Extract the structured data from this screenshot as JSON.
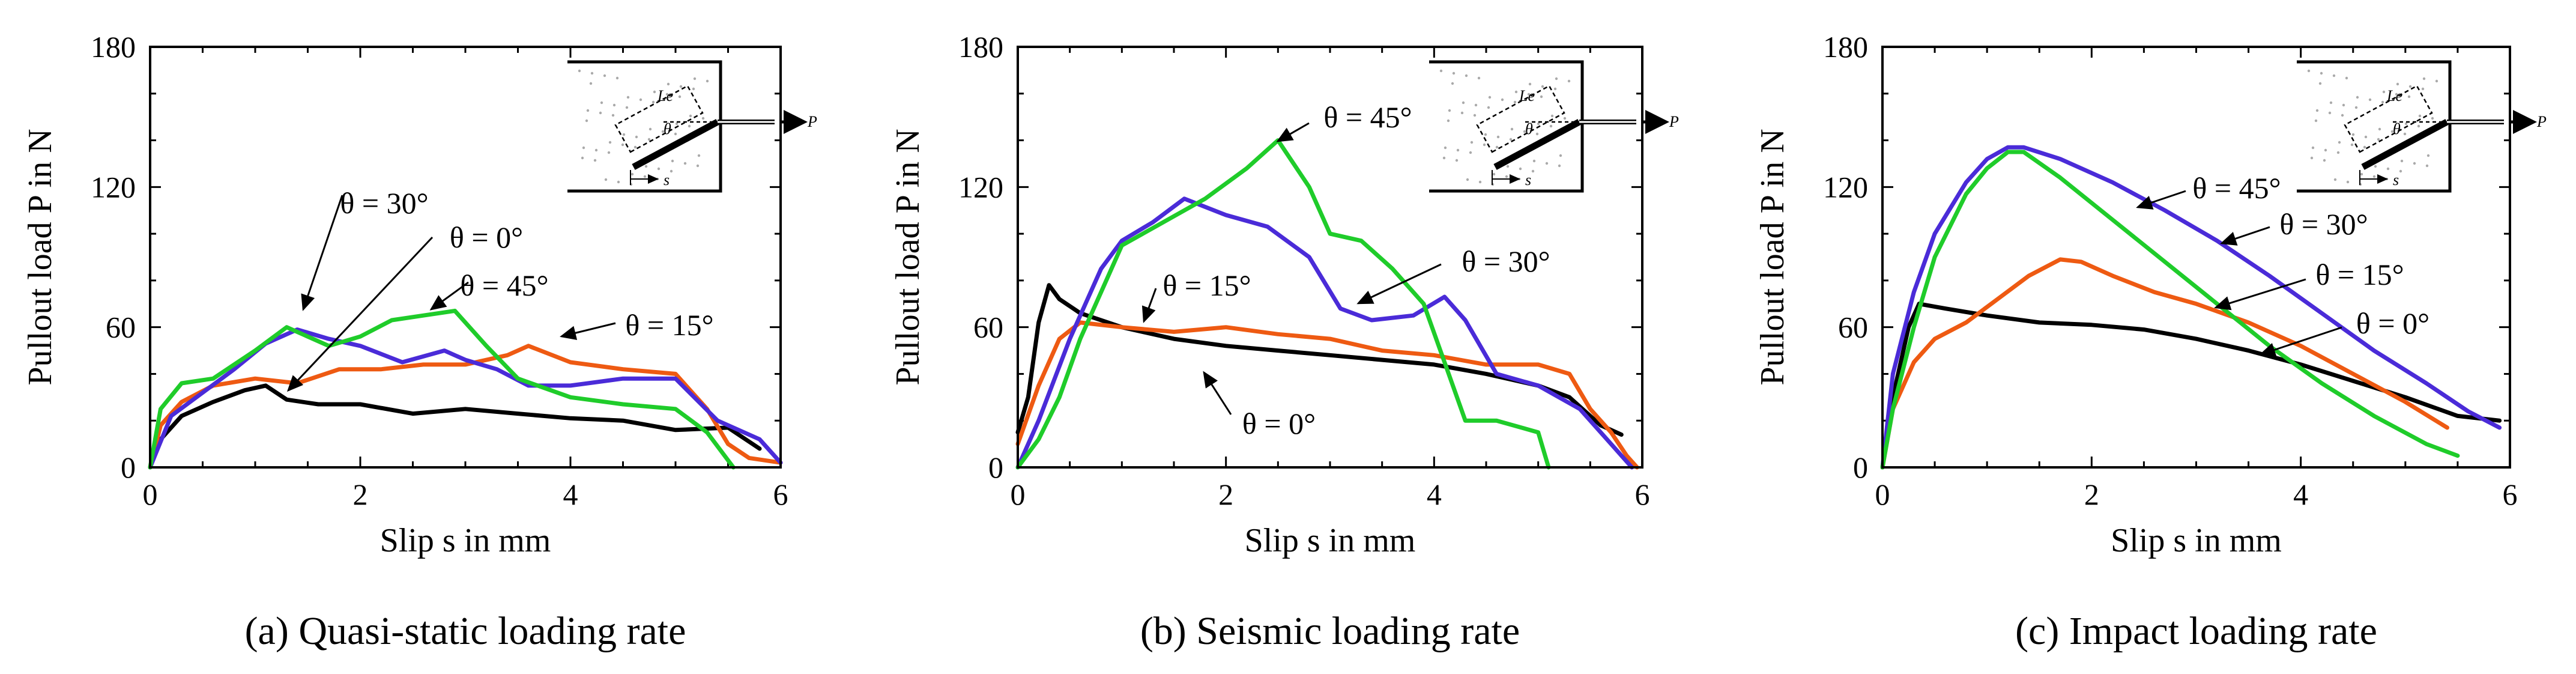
{
  "figure": {
    "captions": [
      "(a) Quasi-static loading rate",
      "(b) Seismic loading rate",
      "(c) Impact loading rate"
    ]
  },
  "inset": {
    "le_label": "Le",
    "theta_label": "θ",
    "s_label": "s",
    "p_label": "P"
  },
  "colors": {
    "theta_0": "#000000",
    "theta_15": "#ee5a12",
    "theta_30": "#4a2bd8",
    "theta_45": "#1fcc2a"
  },
  "chart_data": [
    {
      "type": "line",
      "title": "(a) Quasi-static loading rate",
      "xlabel": "Slip s in mm",
      "ylabel": "Pullout load P in N",
      "xlim": [
        0,
        6
      ],
      "ylim": [
        0,
        180
      ],
      "xticks": [
        0,
        2,
        4,
        6
      ],
      "yticks": [
        0,
        60,
        120,
        180
      ],
      "series": [
        {
          "name": "θ = 0°",
          "color": "#000000",
          "x": [
            0,
            0.1,
            0.3,
            0.6,
            0.9,
            1.1,
            1.3,
            1.6,
            2.0,
            2.5,
            3.0,
            3.5,
            4.0,
            4.5,
            5.0,
            5.5,
            5.8
          ],
          "y": [
            0,
            12,
            22,
            28,
            33,
            35,
            29,
            27,
            27,
            23,
            25,
            23,
            21,
            20,
            16,
            17,
            8
          ]
        },
        {
          "name": "θ = 15°",
          "color": "#ee5a12",
          "x": [
            0,
            0.1,
            0.3,
            0.6,
            1.0,
            1.4,
            1.8,
            2.2,
            2.6,
            3.0,
            3.4,
            3.6,
            4.0,
            4.5,
            5.0,
            5.3,
            5.5,
            5.7,
            6.0
          ],
          "y": [
            0,
            18,
            28,
            35,
            38,
            36,
            42,
            42,
            44,
            44,
            48,
            52,
            45,
            42,
            40,
            25,
            10,
            4,
            2
          ]
        },
        {
          "name": "θ = 30°",
          "color": "#4a2bd8",
          "x": [
            0,
            0.2,
            0.5,
            0.8,
            1.1,
            1.4,
            1.7,
            2.0,
            2.4,
            2.8,
            3.0,
            3.3,
            3.6,
            4.0,
            4.5,
            5.0,
            5.4,
            5.8,
            6.0
          ],
          "y": [
            0,
            22,
            32,
            42,
            53,
            59,
            55,
            52,
            45,
            50,
            46,
            42,
            35,
            35,
            38,
            38,
            20,
            12,
            2
          ]
        },
        {
          "name": "θ = 45°",
          "color": "#1fcc2a",
          "x": [
            0,
            0.1,
            0.3,
            0.6,
            1.0,
            1.3,
            1.7,
            2.0,
            2.3,
            2.6,
            2.9,
            3.2,
            3.5,
            4.0,
            4.5,
            5.0,
            5.3,
            5.55
          ],
          "y": [
            0,
            25,
            36,
            38,
            50,
            60,
            52,
            56,
            63,
            65,
            67,
            52,
            38,
            30,
            27,
            25,
            15,
            0
          ]
        }
      ],
      "annotations": [
        "θ = 30°",
        "θ = 0°",
        "θ = 45°",
        "θ = 15°"
      ]
    },
    {
      "type": "line",
      "title": "(b) Seismic loading rate",
      "xlabel": "Slip s in mm",
      "ylabel": "Pullout load P in N",
      "xlim": [
        0,
        6
      ],
      "ylim": [
        0,
        180
      ],
      "xticks": [
        0,
        2,
        4,
        6
      ],
      "yticks": [
        0,
        60,
        120,
        180
      ],
      "series": [
        {
          "name": "θ = 0°",
          "color": "#000000",
          "x": [
            0,
            0.1,
            0.2,
            0.3,
            0.4,
            0.6,
            1.0,
            1.5,
            2.0,
            2.5,
            3.0,
            3.5,
            4.0,
            4.5,
            5.0,
            5.3,
            5.6,
            5.8
          ],
          "y": [
            15,
            30,
            62,
            78,
            72,
            66,
            60,
            55,
            52,
            50,
            48,
            46,
            44,
            40,
            35,
            30,
            18,
            14
          ]
        },
        {
          "name": "θ = 15°",
          "color": "#ee5a12",
          "x": [
            0,
            0.2,
            0.4,
            0.6,
            1.0,
            1.5,
            2.0,
            2.5,
            3.0,
            3.5,
            4.0,
            4.5,
            5.0,
            5.3,
            5.5,
            5.7,
            5.85,
            5.95
          ],
          "y": [
            10,
            35,
            55,
            62,
            60,
            58,
            60,
            57,
            55,
            50,
            48,
            44,
            44,
            40,
            25,
            15,
            5,
            0
          ]
        },
        {
          "name": "θ = 30°",
          "color": "#4a2bd8",
          "x": [
            0,
            0.2,
            0.5,
            0.8,
            1.0,
            1.3,
            1.6,
            2.0,
            2.4,
            2.8,
            3.1,
            3.4,
            3.8,
            4.1,
            4.3,
            4.6,
            5.0,
            5.4,
            5.7,
            5.9
          ],
          "y": [
            0,
            20,
            55,
            85,
            97,
            105,
            115,
            108,
            103,
            90,
            68,
            63,
            65,
            73,
            63,
            40,
            35,
            25,
            10,
            0
          ]
        },
        {
          "name": "θ = 45°",
          "color": "#1fcc2a",
          "x": [
            0,
            0.2,
            0.4,
            0.6,
            0.8,
            1.0,
            1.4,
            1.8,
            2.2,
            2.5,
            2.8,
            3.0,
            3.3,
            3.6,
            3.9,
            4.1,
            4.3,
            4.6,
            5.0,
            5.1
          ],
          "y": [
            0,
            12,
            30,
            55,
            75,
            95,
            105,
            115,
            128,
            140,
            120,
            100,
            97,
            85,
            70,
            45,
            20,
            20,
            15,
            0
          ]
        }
      ],
      "annotations": [
        "θ = 45°",
        "θ = 15°",
        "θ = 30°",
        "θ = 0°"
      ]
    },
    {
      "type": "line",
      "title": "(c) Impact loading rate",
      "xlabel": "Slip s in mm",
      "ylabel": "Pullout load P in N",
      "xlim": [
        0,
        6
      ],
      "ylim": [
        0,
        180
      ],
      "xticks": [
        0,
        2,
        4,
        6
      ],
      "yticks": [
        0,
        60,
        120,
        180
      ],
      "series": [
        {
          "name": "θ = 0°",
          "color": "#000000",
          "x": [
            0,
            0.1,
            0.25,
            0.35,
            0.6,
            1.0,
            1.5,
            2.0,
            2.5,
            3.0,
            3.5,
            4.0,
            4.5,
            5.0,
            5.5,
            5.9
          ],
          "y": [
            0,
            30,
            60,
            70,
            68,
            65,
            62,
            61,
            59,
            55,
            50,
            44,
            37,
            30,
            22,
            20
          ]
        },
        {
          "name": "θ = 15°",
          "color": "#ee5a12",
          "x": [
            0,
            0.1,
            0.3,
            0.5,
            0.8,
            1.1,
            1.4,
            1.7,
            1.9,
            2.2,
            2.6,
            3.0,
            3.5,
            4.0,
            4.5,
            5.0,
            5.4
          ],
          "y": [
            0,
            25,
            45,
            55,
            62,
            72,
            82,
            89,
            88,
            82,
            75,
            70,
            62,
            52,
            40,
            28,
            17
          ]
        },
        {
          "name": "θ = 30°",
          "color": "#4a2bd8",
          "x": [
            0,
            0.1,
            0.3,
            0.5,
            0.8,
            1.0,
            1.2,
            1.35,
            1.7,
            2.2,
            2.7,
            3.2,
            3.7,
            4.2,
            4.7,
            5.2,
            5.6,
            5.9
          ],
          "y": [
            0,
            40,
            75,
            100,
            122,
            132,
            137,
            137,
            132,
            122,
            110,
            97,
            82,
            66,
            50,
            36,
            24,
            17
          ]
        },
        {
          "name": "θ = 45°",
          "color": "#1fcc2a",
          "x": [
            0,
            0.1,
            0.3,
            0.5,
            0.8,
            1.0,
            1.2,
            1.35,
            1.7,
            2.2,
            2.7,
            3.2,
            3.7,
            4.2,
            4.7,
            5.2,
            5.5
          ],
          "y": [
            0,
            25,
            60,
            90,
            117,
            128,
            135,
            135,
            124,
            106,
            88,
            70,
            52,
            36,
            22,
            10,
            5
          ]
        }
      ],
      "annotations": [
        "θ = 45°",
        "θ = 30°",
        "θ = 15°",
        "θ = 0°"
      ]
    }
  ]
}
